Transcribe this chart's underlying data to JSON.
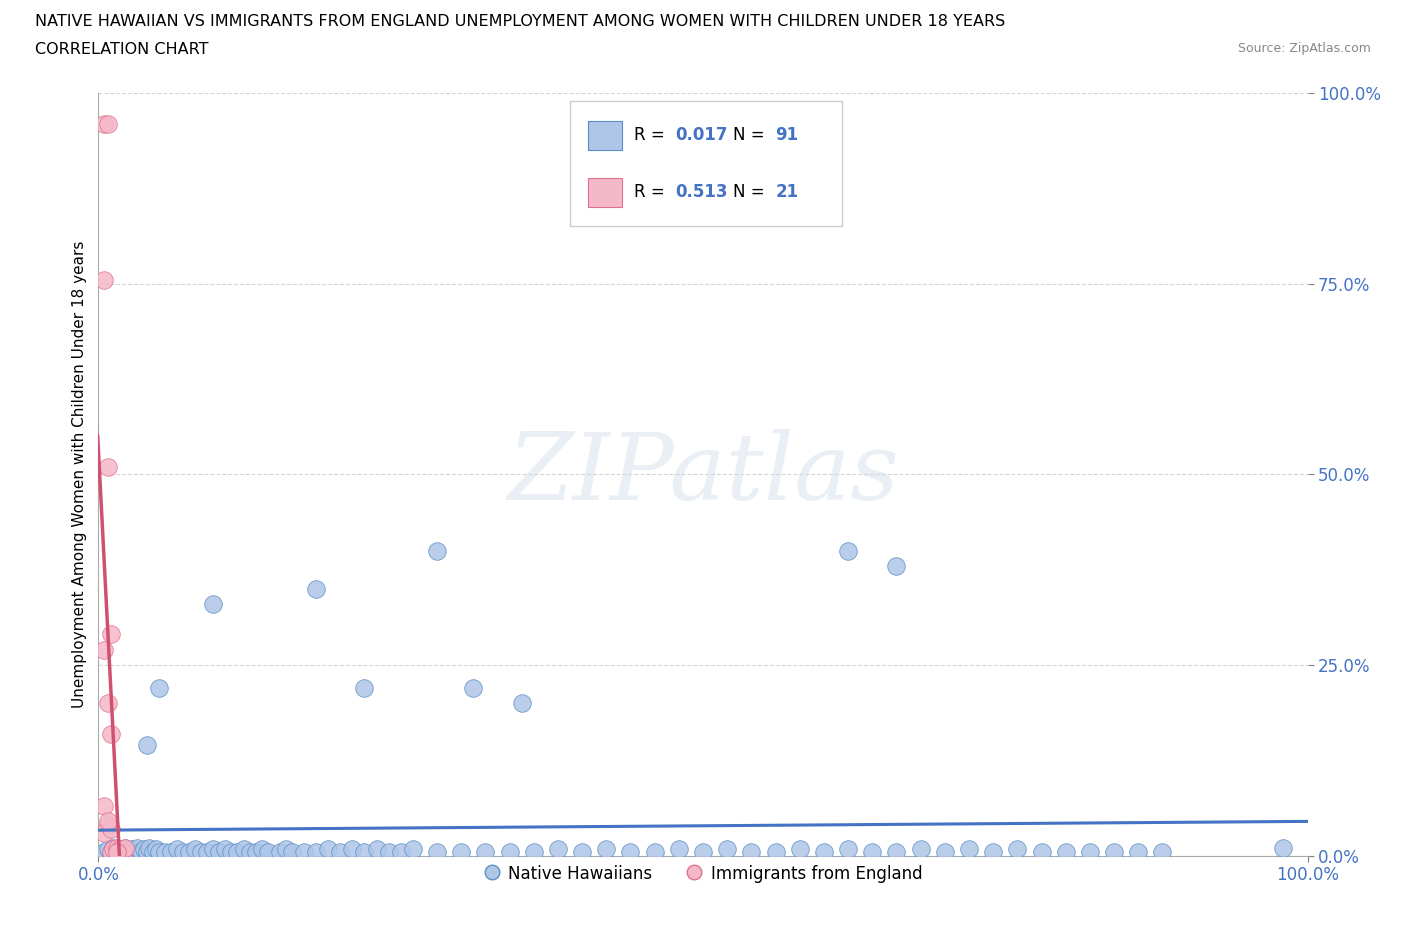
{
  "title_line1": "NATIVE HAWAIIAN VS IMMIGRANTS FROM ENGLAND UNEMPLOYMENT AMONG WOMEN WITH CHILDREN UNDER 18 YEARS",
  "title_line2": "CORRELATION CHART",
  "source": "Source: ZipAtlas.com",
  "ylabel": "Unemployment Among Women with Children Under 18 years",
  "xlim": [
    0.0,
    1.0
  ],
  "ylim": [
    0.0,
    1.0
  ],
  "xticks": [
    0.0,
    1.0
  ],
  "yticks": [
    0.0,
    0.25,
    0.5,
    0.75,
    1.0
  ],
  "xticklabels": [
    "0.0%",
    "100.0%"
  ],
  "yticklabels": [
    "0.0%",
    "25.0%",
    "50.0%",
    "75.0%",
    "100.0%"
  ],
  "blue_color": "#aec6e8",
  "pink_color": "#f5b8c8",
  "blue_edge_color": "#5b8ec4",
  "pink_edge_color": "#e07090",
  "blue_line_color": "#4472c4",
  "pink_line_color": "#d05070",
  "legend_label1": "Native Hawaiians",
  "legend_label2": "Immigrants from England",
  "watermark_text": "ZIPatlas",
  "blue_x": [
    0.005,
    0.008,
    0.01,
    0.012,
    0.015,
    0.018,
    0.02,
    0.022,
    0.025,
    0.028,
    0.03,
    0.032,
    0.035,
    0.038,
    0.04,
    0.042,
    0.045,
    0.048,
    0.05,
    0.055,
    0.06,
    0.065,
    0.07,
    0.075,
    0.08,
    0.085,
    0.09,
    0.095,
    0.1,
    0.105,
    0.11,
    0.115,
    0.12,
    0.125,
    0.13,
    0.135,
    0.14,
    0.15,
    0.155,
    0.16,
    0.17,
    0.18,
    0.19,
    0.2,
    0.21,
    0.22,
    0.23,
    0.24,
    0.25,
    0.26,
    0.28,
    0.3,
    0.32,
    0.34,
    0.36,
    0.38,
    0.4,
    0.42,
    0.44,
    0.46,
    0.48,
    0.5,
    0.52,
    0.54,
    0.56,
    0.58,
    0.6,
    0.62,
    0.64,
    0.66,
    0.68,
    0.7,
    0.72,
    0.74,
    0.76,
    0.78,
    0.8,
    0.82,
    0.84,
    0.86,
    0.88,
    0.28,
    0.62,
    0.66,
    0.18,
    0.22,
    0.31,
    0.35,
    0.095,
    0.05,
    0.04,
    0.98
  ],
  "blue_y": [
    0.005,
    0.008,
    0.005,
    0.01,
    0.005,
    0.008,
    0.005,
    0.01,
    0.005,
    0.008,
    0.005,
    0.01,
    0.005,
    0.008,
    0.005,
    0.01,
    0.005,
    0.008,
    0.005,
    0.005,
    0.005,
    0.008,
    0.005,
    0.005,
    0.008,
    0.005,
    0.005,
    0.008,
    0.005,
    0.008,
    0.005,
    0.005,
    0.008,
    0.005,
    0.005,
    0.008,
    0.005,
    0.005,
    0.008,
    0.005,
    0.005,
    0.005,
    0.008,
    0.005,
    0.008,
    0.005,
    0.008,
    0.005,
    0.005,
    0.008,
    0.005,
    0.005,
    0.005,
    0.005,
    0.005,
    0.008,
    0.005,
    0.008,
    0.005,
    0.005,
    0.008,
    0.005,
    0.008,
    0.005,
    0.005,
    0.008,
    0.005,
    0.008,
    0.005,
    0.005,
    0.008,
    0.005,
    0.008,
    0.005,
    0.008,
    0.005,
    0.005,
    0.005,
    0.005,
    0.005,
    0.005,
    0.4,
    0.4,
    0.38,
    0.35,
    0.22,
    0.22,
    0.2,
    0.33,
    0.22,
    0.145,
    0.01
  ],
  "pink_x": [
    0.005,
    0.008,
    0.01,
    0.012,
    0.015,
    0.018,
    0.02,
    0.022,
    0.005,
    0.008,
    0.01,
    0.015,
    0.005,
    0.008,
    0.01,
    0.015,
    0.005,
    0.008,
    0.005,
    0.01,
    0.008
  ],
  "pink_y": [
    0.96,
    0.96,
    0.005,
    0.008,
    0.01,
    0.008,
    0.005,
    0.01,
    0.755,
    0.51,
    0.29,
    0.005,
    0.27,
    0.2,
    0.16,
    0.005,
    0.065,
    0.04,
    0.03,
    0.035,
    0.045
  ]
}
